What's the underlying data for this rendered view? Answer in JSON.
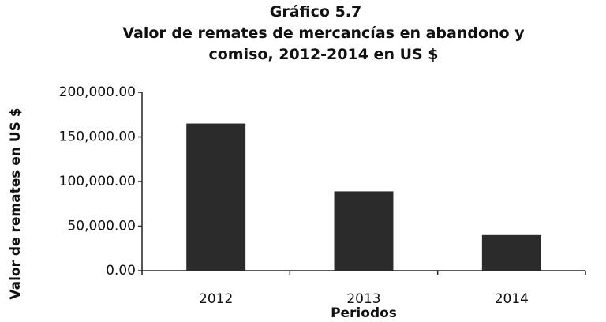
{
  "chart_data": {
    "type": "bar",
    "title": "Gráfico 5.7",
    "subtitle": "Valor de remates de mercancías en abandono y comiso, 2012-2014 en US $",
    "y_label": "Valor de remates en US $",
    "x_label": "Periodos",
    "categories": [
      "2012",
      "2013",
      "2014"
    ],
    "values": [
      165000,
      89000,
      40000
    ],
    "color": "#2b2b2b",
    "ylim": [
      0,
      200000
    ],
    "yticks": [
      {
        "value": 0,
        "label": "0.00"
      },
      {
        "value": 50000,
        "label": "50,000.00"
      },
      {
        "value": 100000,
        "label": "100,000.00"
      },
      {
        "value": 150000,
        "label": "150,000.00"
      },
      {
        "value": 200000,
        "label": "200,000.00"
      }
    ],
    "grid": false
  }
}
